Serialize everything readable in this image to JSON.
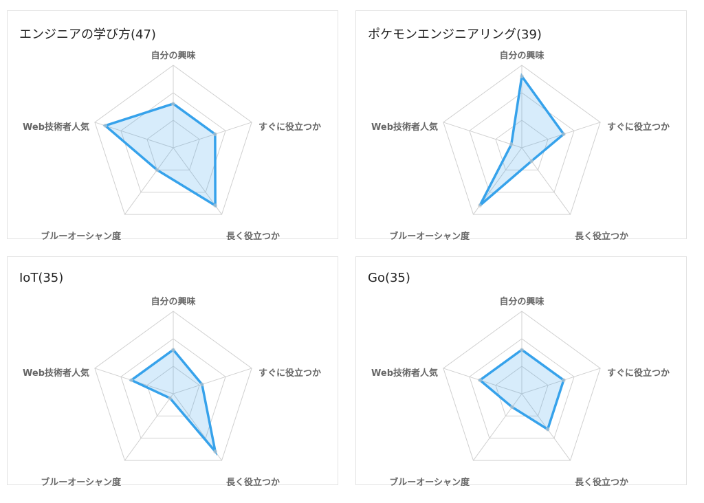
{
  "chart_data": [
    {
      "type": "radar",
      "title": "エンジニアの学び方(47)",
      "categories": [
        "自分の興味",
        "すぐに役立つか",
        "長く役立つか",
        "ブルーオーシャン度",
        "Web技術者人気"
      ],
      "values": [
        1.6,
        1.6,
        2.6,
        1.0,
        2.6
      ],
      "range": [
        0,
        3
      ],
      "grid": true,
      "color": "#36a2eb"
    },
    {
      "type": "radar",
      "title": "ポケモンエンジニアリング(39)",
      "categories": [
        "自分の興味",
        "すぐに役立つか",
        "長く役立つか",
        "ブルーオーシャン度",
        "Web技術者人気"
      ],
      "values": [
        2.6,
        1.6,
        0.6,
        2.6,
        0.4
      ],
      "range": [
        0,
        3
      ],
      "grid": true,
      "color": "#36a2eb"
    },
    {
      "type": "radar",
      "title": "IoT(35)",
      "categories": [
        "自分の興味",
        "すぐに役立つか",
        "長く役立つか",
        "ブルーオーシャン度",
        "Web技術者人気"
      ],
      "values": [
        1.6,
        1.1,
        2.6,
        0.2,
        1.6
      ],
      "range": [
        0,
        3
      ],
      "grid": true,
      "color": "#36a2eb"
    },
    {
      "type": "radar",
      "title": "Go(35)",
      "categories": [
        "自分の興味",
        "すぐに役立つか",
        "長く役立つか",
        "ブルーオーシャン度",
        "Web技術者人気"
      ],
      "values": [
        1.6,
        1.6,
        1.6,
        0.6,
        1.6
      ],
      "range": [
        0,
        3
      ],
      "grid": true,
      "color": "#36a2eb"
    }
  ]
}
